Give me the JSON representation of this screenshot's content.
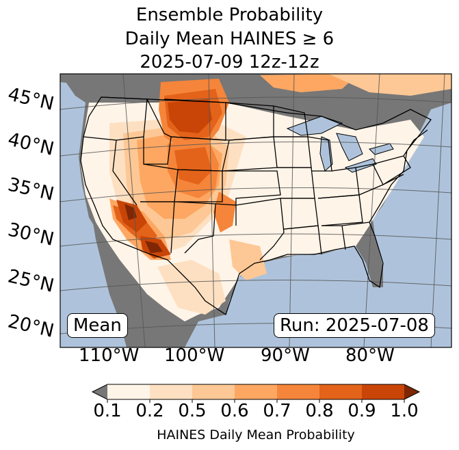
{
  "title": {
    "line1": "Ensemble Probability",
    "line2": "Daily Mean HAINES ≥ 6",
    "line3": "2025-07-09 12z-12z"
  },
  "map": {
    "latitude_labels": [
      "45°N",
      "40°N",
      "35°N",
      "30°N",
      "25°N",
      "20°N"
    ],
    "longitude_labels": [
      "110°W",
      "100°W",
      "90°W",
      "80°W"
    ],
    "panel_left_label": "Mean",
    "panel_right_label": "Run: 2025-07-08",
    "colors": {
      "ocean": "#aec3db",
      "land_low": "#777777",
      "border": "#000000",
      "graticule": "#555555"
    }
  },
  "colorbar": {
    "ticks": [
      "0.1",
      "0.2",
      "0.5",
      "0.6",
      "0.7",
      "0.8",
      "0.9",
      "1.0"
    ],
    "label": "HAINES Daily Mean Probability",
    "colors": [
      "#fff4e8",
      "#fde0c2",
      "#fdc895",
      "#fda762",
      "#f5853a",
      "#e3631a",
      "#c94507"
    ],
    "under_color": "#777777",
    "over_color": "#7f2704"
  }
}
